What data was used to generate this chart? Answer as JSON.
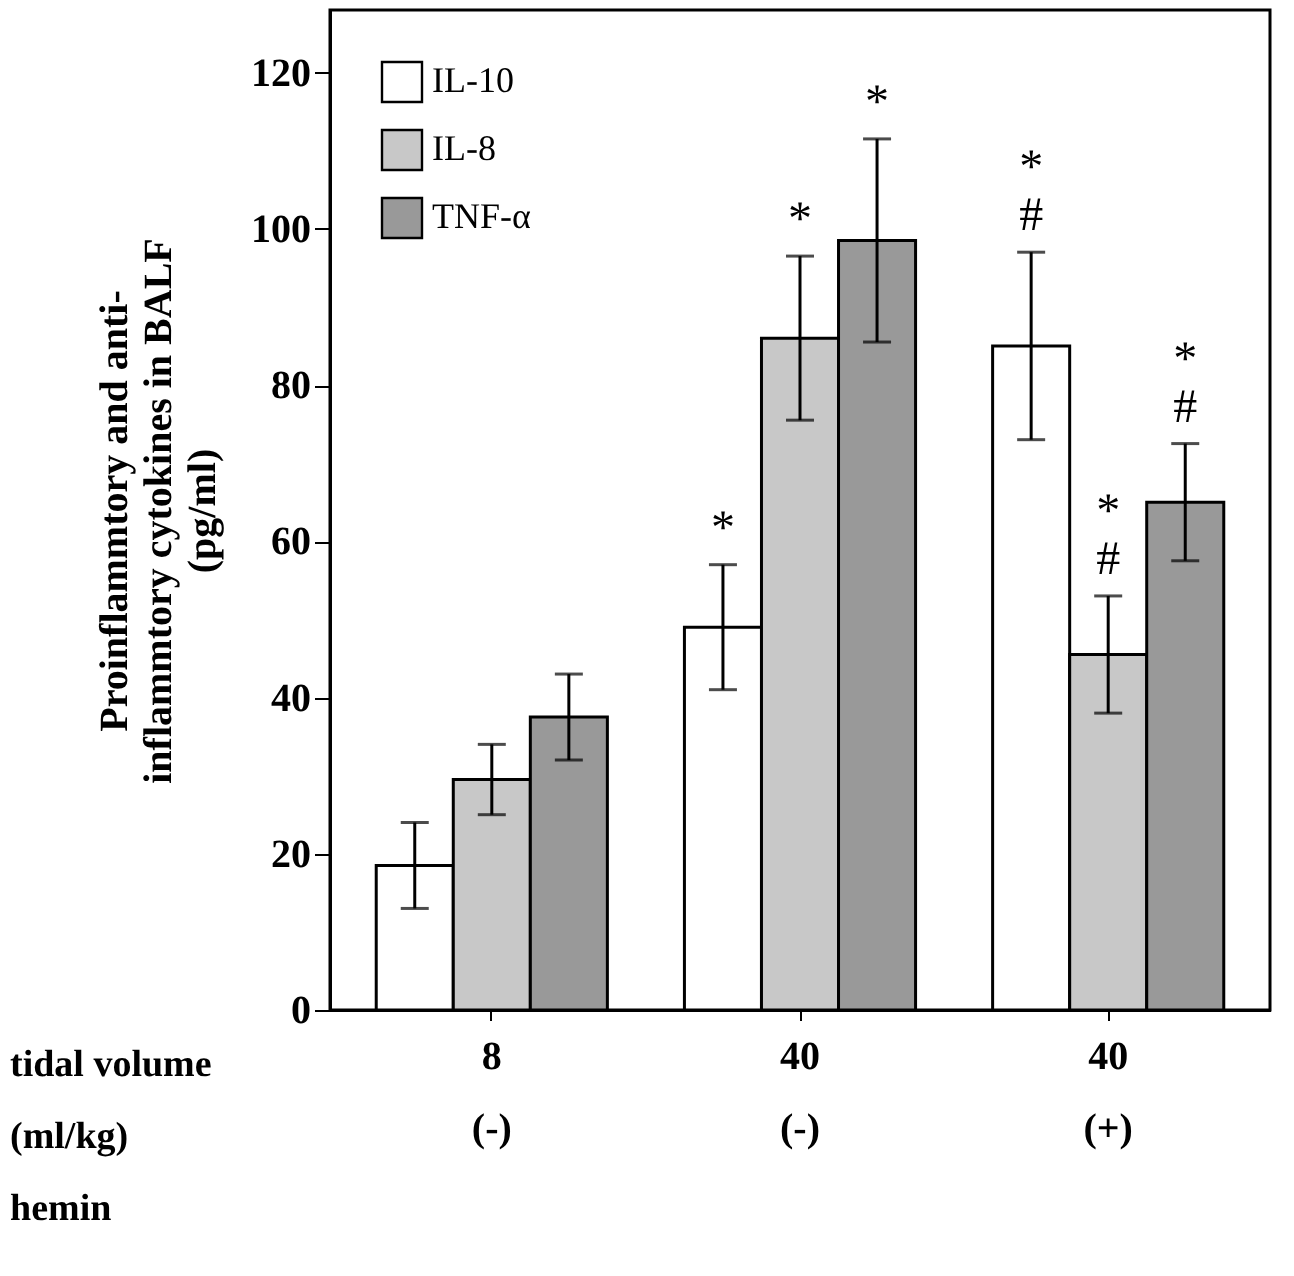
{
  "chart_data": {
    "type": "bar",
    "ylabel": "Proinflammtory and anti-\ninflammtory cytokines in BALF\n(pg/ml)",
    "categories": [
      "8\n(-)",
      "40\n(-)",
      "40\n(+)"
    ],
    "series": [
      {
        "name": "IL-10",
        "color": "#ffffff",
        "values": [
          18.5,
          49,
          85
        ],
        "errors": [
          5.5,
          8,
          12
        ],
        "value_labels": [
          null,
          "*",
          "*\n#"
        ]
      },
      {
        "name": "IL-8",
        "color": "#c8c8c8",
        "values": [
          29.5,
          86,
          45.5
        ],
        "errors": [
          4.5,
          10.5,
          7.5
        ],
        "value_labels": [
          null,
          "*",
          "*\n#"
        ]
      },
      {
        "name": "TNF-α",
        "color": "#999999",
        "values": [
          37.5,
          98.5,
          65
        ],
        "errors": [
          5.5,
          13,
          7.5
        ],
        "value_labels": [
          null,
          "*",
          "*\n#"
        ]
      }
    ],
    "annotations": [
      "tidal volume\n(ml/kg)",
      "hemin"
    ],
    "ylim": [
      0,
      128
    ],
    "yticks": [
      0,
      20,
      40,
      60,
      80,
      100,
      120
    ],
    "grid": false,
    "legend": "top left"
  }
}
